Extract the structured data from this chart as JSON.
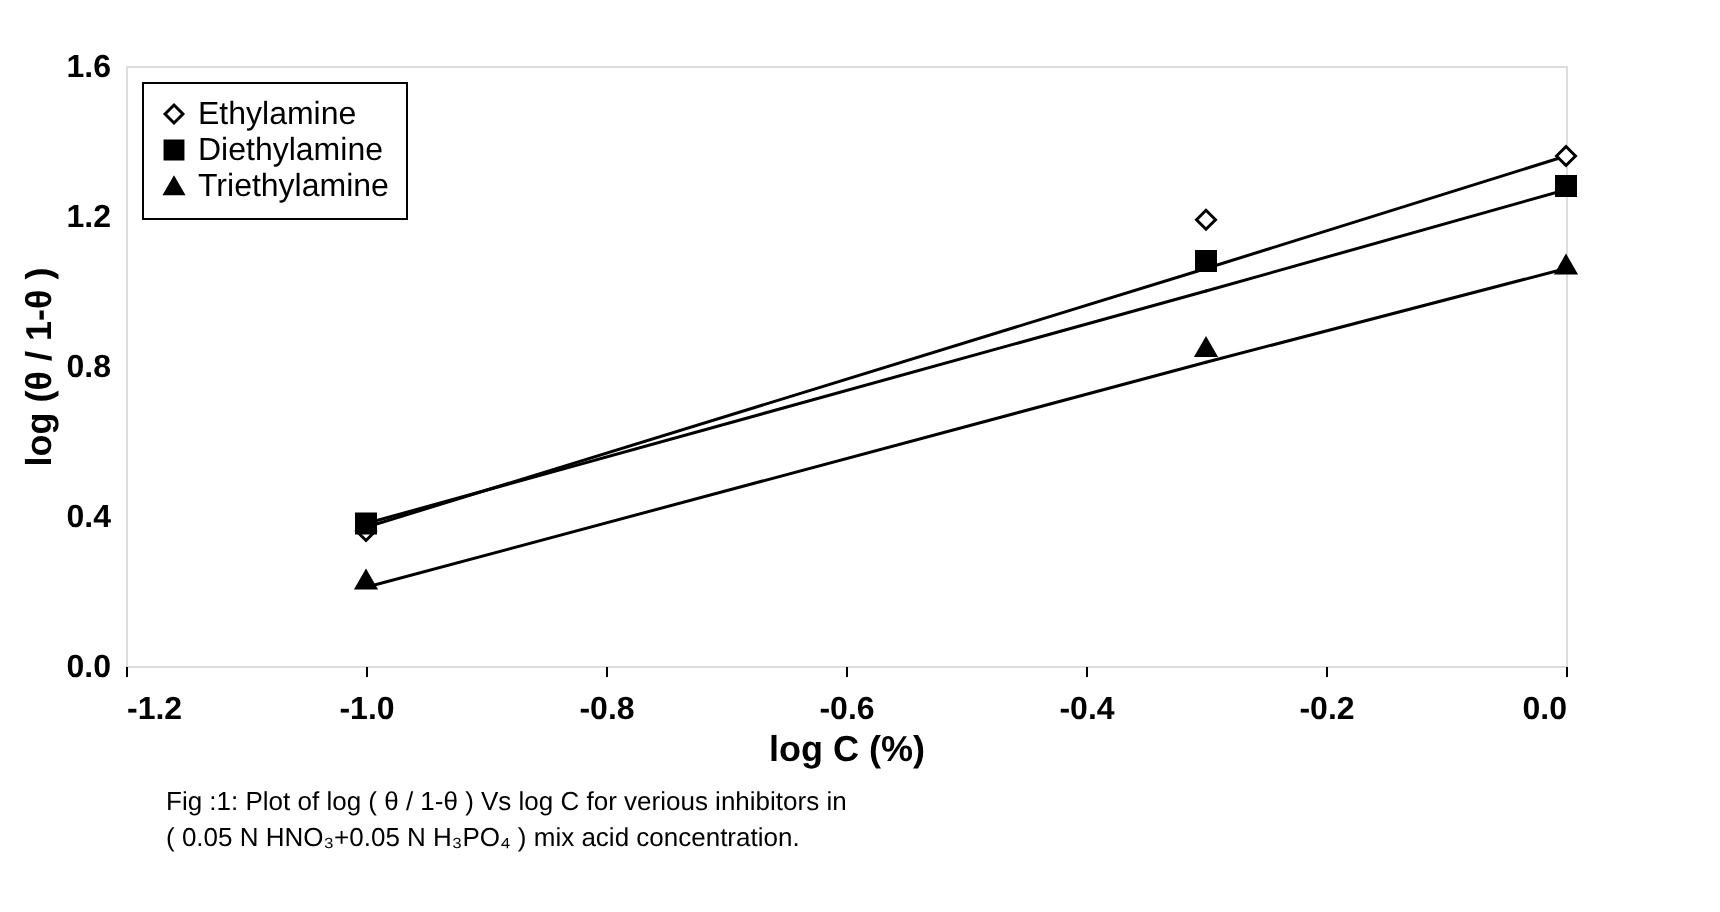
{
  "chart_data": {
    "type": "scatter",
    "xlabel": "log C (%)",
    "ylabel": "log (θ / 1-θ )",
    "xlim": [
      -1.2,
      0.0
    ],
    "xticks": [
      {
        "value": -1.2,
        "label": "-1.2"
      },
      {
        "value": -1.0,
        "label": "-1.0"
      },
      {
        "value": -0.8,
        "label": "-0.8"
      },
      {
        "value": -0.6,
        "label": "-0.6"
      },
      {
        "value": -0.4,
        "label": "-0.4"
      },
      {
        "value": -0.2,
        "label": "-0.2"
      },
      {
        "value": 0.0,
        "label": "0.0"
      }
    ],
    "ylim": [
      0.0,
      1.6
    ],
    "yticks": [
      {
        "value": 0.0,
        "label": "0.0"
      },
      {
        "value": 0.4,
        "label": "0.4"
      },
      {
        "value": 0.8,
        "label": "0.8"
      },
      {
        "value": 1.2,
        "label": "1.2"
      },
      {
        "value": 1.6,
        "label": "1.6"
      }
    ],
    "grid": false,
    "legend": "top left",
    "x": [
      -1.0,
      -0.3,
      0.0
    ],
    "series": [
      {
        "name": "Ethylamine",
        "color": "#000000",
        "marker": "diamond",
        "values": [
          0.36,
          1.19,
          1.36
        ]
      },
      {
        "name": "Diethylamine",
        "color": "#000000",
        "marker": "square",
        "values": [
          0.38,
          1.08,
          1.28
        ]
      },
      {
        "name": "Triethylamine",
        "color": "#000000",
        "marker": "triangle",
        "values": [
          0.23,
          0.85,
          1.07
        ]
      },
      {
        "type": "line",
        "color": "#000000",
        "marker": "none",
        "values": [
          0.37,
          1.06,
          1.36
        ]
      },
      {
        "type": "line",
        "color": "#000000",
        "marker": "none",
        "values": [
          0.38,
          1.0,
          1.27
        ]
      },
      {
        "type": "line",
        "color": "#000000",
        "marker": "none",
        "values": [
          0.21,
          0.81,
          1.06
        ]
      }
    ],
    "annotations": [
      "Fig :1: Plot of log ( θ / 1-θ ) Vs log C for verious inhibitors in",
      "( 0.05 N HNO₃+0.05 N H₃PO₄ ) mix acid concentration."
    ]
  }
}
